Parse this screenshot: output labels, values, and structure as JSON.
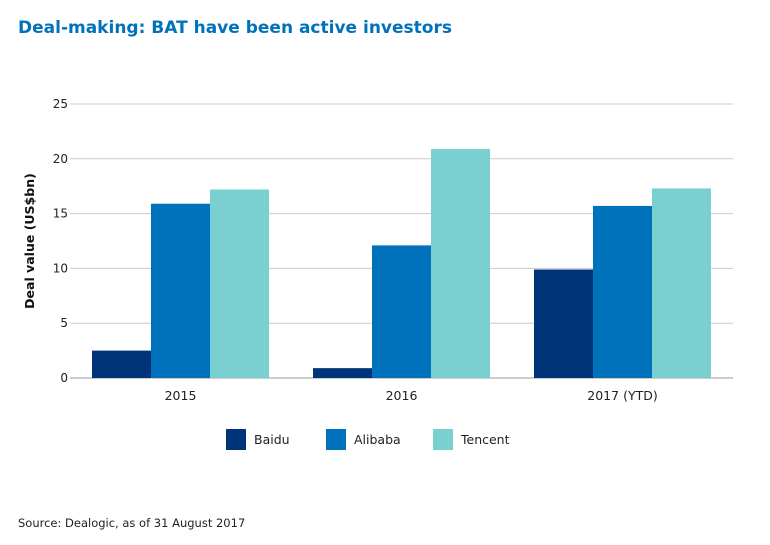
{
  "title": "Deal-making: BAT have been active investors",
  "source": "Source: Dealogic, as of 31 August 2017",
  "chart_data": {
    "type": "bar",
    "title": "Deal-making: BAT have been active investors",
    "xlabel": "",
    "ylabel": "Deal value (US$bn)",
    "ylim": [
      0,
      25
    ],
    "yticks": [
      0,
      5,
      10,
      15,
      20,
      25
    ],
    "grid": true,
    "legend": "bottom",
    "categories": [
      "2015",
      "2016",
      "2017 (YTD)"
    ],
    "series": [
      {
        "name": "Baidu",
        "color": "#003478",
        "values": [
          2.5,
          0.9,
          9.9
        ]
      },
      {
        "name": "Alibaba",
        "color": "#0072bc",
        "values": [
          15.9,
          12.1,
          15.7
        ]
      },
      {
        "name": "Tencent",
        "color": "#7acfd1",
        "values": [
          17.2,
          20.9,
          17.3
        ]
      }
    ]
  }
}
